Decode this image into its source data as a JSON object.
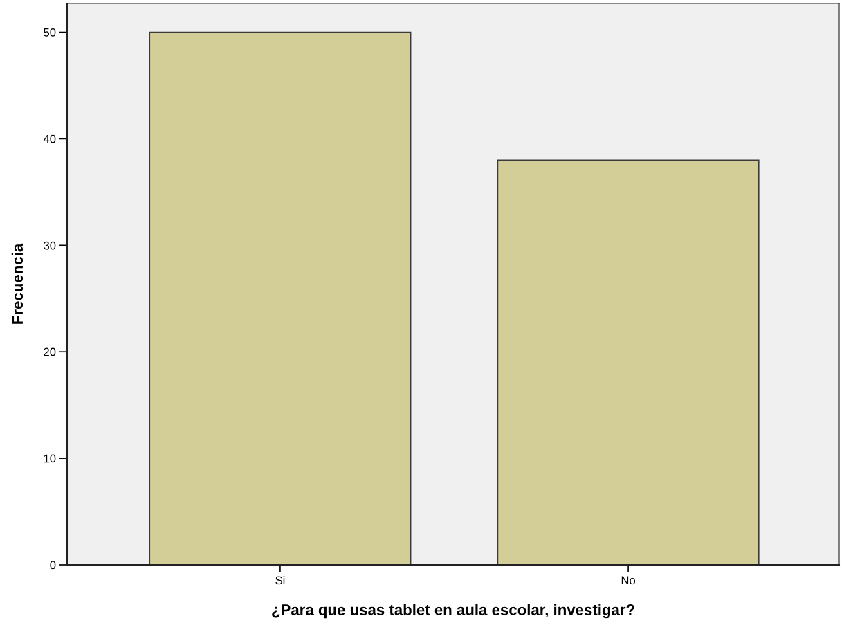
{
  "chart_data": {
    "type": "bar",
    "xlabel": "¿Para que usas tablet en aula escolar, investigar?",
    "ylabel": "Frecuencia",
    "categories": [
      "Si",
      "No"
    ],
    "values": [
      50,
      38
    ],
    "color": "#d3cd98",
    "ylim": [
      0,
      52.7
    ],
    "yticks": [
      0,
      10,
      20,
      30,
      40,
      50
    ],
    "grid": false
  }
}
